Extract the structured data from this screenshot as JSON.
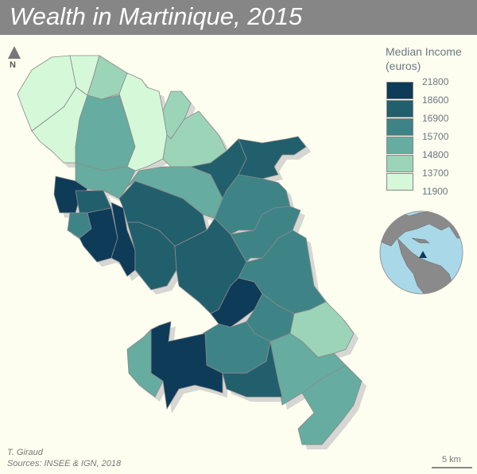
{
  "title": "Wealth in Martinique, 2015",
  "north_label": "N",
  "legend": {
    "title_line1": "Median Income",
    "title_line2": "(euros)",
    "breaks": [
      "21800",
      "18600",
      "16900",
      "15700",
      "14800",
      "13700",
      "11900"
    ],
    "colors": [
      "#0e3b58",
      "#225f6d",
      "#3e8487",
      "#66aca0",
      "#9cd4b8",
      "#d4f8d8"
    ]
  },
  "credits": {
    "author": "T. Giraud",
    "sources": "Sources: INSEE & IGN, 2018"
  },
  "scale": {
    "label": "5 km"
  },
  "inset": {
    "marker": "Martinique location on globe"
  },
  "colors": {
    "title_bar": "#868686",
    "background": "#fefef0",
    "ocean": "#a9d8e8",
    "land": "#8a8a8a"
  }
}
